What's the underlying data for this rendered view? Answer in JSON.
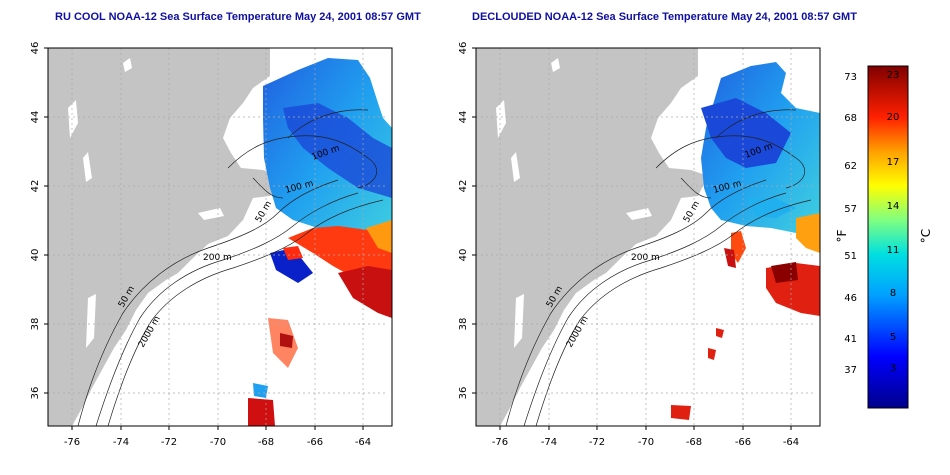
{
  "titles": {
    "left": "RU COOL NOAA-12 Sea Surface Temperature May 24, 2001 08:57 GMT",
    "right": "DECLOUDED NOAA-12 Sea Surface Temperature May 24, 2001 08:57 GMT"
  },
  "axes": {
    "lon_ticks": [
      -76,
      -74,
      -72,
      -70,
      -68,
      -66,
      -64
    ],
    "lat_ticks": [
      36,
      38,
      40,
      42,
      44,
      46
    ],
    "lon_range": [
      -77,
      -63
    ],
    "lat_range": [
      35,
      46
    ]
  },
  "contour_labels": [
    "50 m",
    "100 m",
    "200 m",
    "100 m",
    "2000 m"
  ],
  "colorbar": {
    "f_ticks": [
      "73",
      "68",
      "62",
      "57",
      "51",
      "46",
      "41",
      "37"
    ],
    "c_ticks": [
      "23",
      "20",
      "17",
      "14",
      "11",
      "8",
      "5",
      "3"
    ],
    "f_unit": "°F",
    "c_unit": "°C"
  },
  "colors": {
    "land": "#c4c4c4",
    "title": "#1010a0",
    "grid": "#aaaaaa"
  }
}
